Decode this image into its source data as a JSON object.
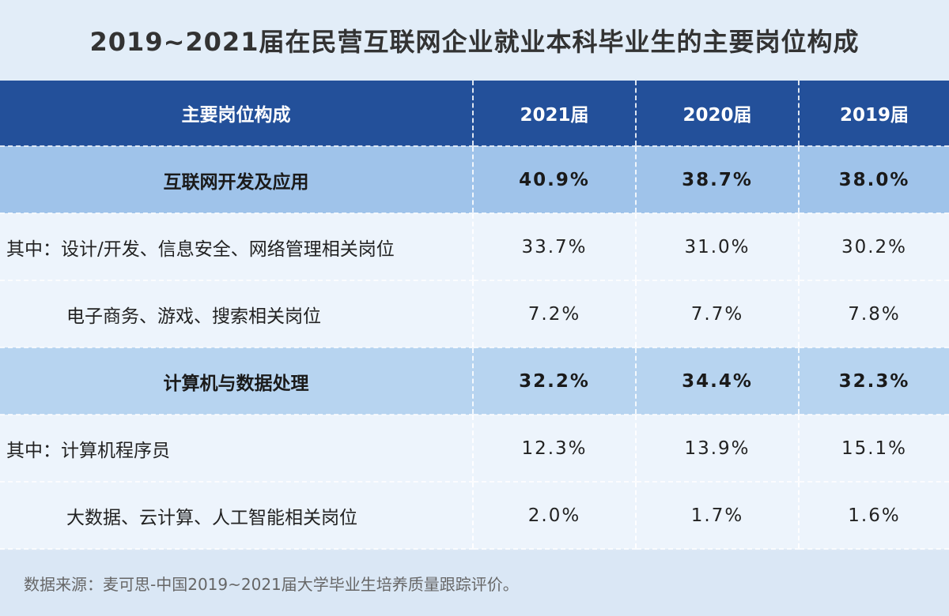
{
  "title": "2019~2021届在民营互联网企业就业本科毕业生的主要岗位构成",
  "table": {
    "headers": [
      "主要岗位构成",
      "2021届",
      "2020届",
      "2019届"
    ],
    "rows": [
      {
        "type": "category",
        "label": "互联网开发及应用",
        "values": [
          "40.9%",
          "38.7%",
          "38.0%"
        ]
      },
      {
        "type": "sub",
        "prefix": "其中：",
        "label": "设计/开发、信息安全、网络管理相关岗位",
        "values": [
          "33.7%",
          "31.0%",
          "30.2%"
        ]
      },
      {
        "type": "sub",
        "prefix": "",
        "label": "电子商务、游戏、搜索相关岗位",
        "values": [
          "7.2%",
          "7.7%",
          "7.8%"
        ]
      },
      {
        "type": "category",
        "label": "计算机与数据处理",
        "values": [
          "32.2%",
          "34.4%",
          "32.3%"
        ]
      },
      {
        "type": "sub",
        "prefix": "其中：",
        "label": "计算机程序员",
        "values": [
          "12.3%",
          "13.9%",
          "15.1%"
        ]
      },
      {
        "type": "sub",
        "prefix": "",
        "label": "大数据、云计算、人工智能相关岗位",
        "values": [
          "2.0%",
          "1.7%",
          "1.6%"
        ]
      }
    ]
  },
  "footer": {
    "source": "数据来源：麦可思-中国2019~2021届大学毕业生培养质量跟踪评价。"
  },
  "colors": {
    "header_bg": "#23509a",
    "category_bg": "#9fc3ea",
    "sub_bg": "#edf4fc",
    "page_bg": "#dfeaf6"
  }
}
